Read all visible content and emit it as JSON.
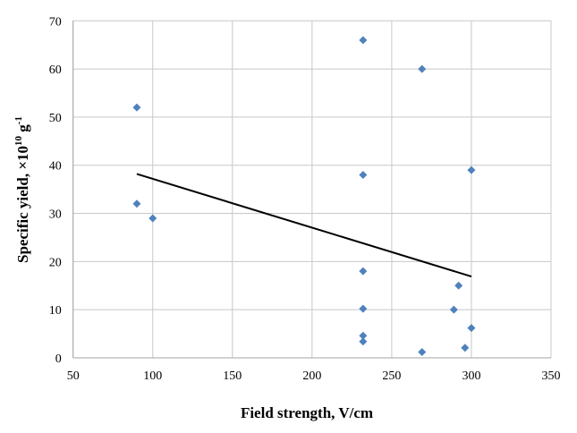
{
  "chart_data": {
    "type": "scatter",
    "xlabel": "Field strength, V/cm",
    "ylabel": "Specific yield, ×10",
    "ylabel_exponent": "10",
    "ylabel_unit": " g",
    "ylabel_unit_exponent": "-1",
    "xlim": [
      50,
      350
    ],
    "ylim": [
      0,
      70
    ],
    "xticks": [
      50,
      100,
      150,
      200,
      250,
      300,
      350
    ],
    "yticks": [
      0,
      10,
      20,
      30,
      40,
      50,
      60,
      70
    ],
    "grid": true,
    "legend": "none",
    "marker_color": "#4F81BD",
    "trendline_color": "#000000",
    "points": [
      {
        "x": 90,
        "y": 52
      },
      {
        "x": 90,
        "y": 32
      },
      {
        "x": 100,
        "y": 29
      },
      {
        "x": 232,
        "y": 66
      },
      {
        "x": 269,
        "y": 60
      },
      {
        "x": 232,
        "y": 38
      },
      {
        "x": 300,
        "y": 39
      },
      {
        "x": 232,
        "y": 18
      },
      {
        "x": 292,
        "y": 15
      },
      {
        "x": 232,
        "y": 10.2
      },
      {
        "x": 289,
        "y": 10
      },
      {
        "x": 300,
        "y": 6.2
      },
      {
        "x": 232,
        "y": 4.6
      },
      {
        "x": 232,
        "y": 3.4
      },
      {
        "x": 269,
        "y": 1.2
      },
      {
        "x": 296,
        "y": 2.1
      }
    ],
    "trendline": {
      "x": [
        90,
        300
      ],
      "y": [
        38.2,
        16.9
      ]
    }
  }
}
